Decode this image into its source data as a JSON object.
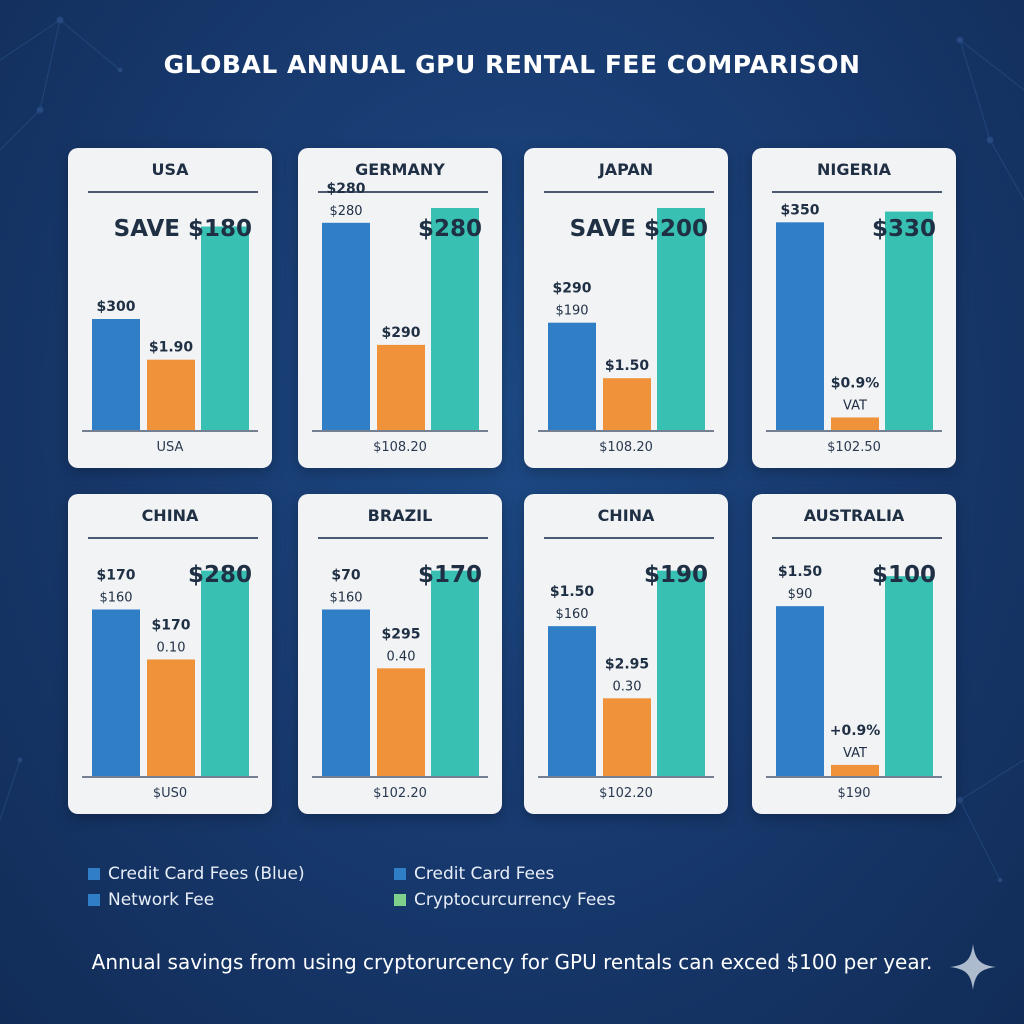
{
  "title": "GLOBAL ANNUAL GPU RENTAL FEE COMPARISON",
  "colors": {
    "credit": "#2f7ec6",
    "network": "#f0923a",
    "crypto": "#38c1b2",
    "crypto_legend": "#7fd08a"
  },
  "legend": [
    {
      "label": "Credit Card Fees (Blue)",
      "color": "#2f7ec6"
    },
    {
      "label": "Network Fee",
      "color": "#2f7ec6"
    },
    {
      "label": "Credit Card Fees",
      "color": "#2f7ec6"
    },
    {
      "label": "Cryptocurcurrency Fees",
      "color": "#7fd08a"
    }
  ],
  "footnote": "Annual savings from using cryptorurcency for GPU rentals can exced $100 per year.",
  "chart_data": [
    {
      "type": "bar",
      "title": "USA",
      "headline": "SAVE $180",
      "footer": "USA",
      "values": [
        300,
        190,
        550
      ],
      "labels": [
        [
          "$300"
        ],
        [
          "$1.90"
        ],
        []
      ],
      "ylim": [
        0,
        600
      ]
    },
    {
      "type": "bar",
      "title": "GERMANY",
      "headline": "$280",
      "footer": "$108.20",
      "values": [
        560,
        230,
        600
      ],
      "labels": [
        [
          "$280",
          "$280"
        ],
        [
          "$290"
        ],
        []
      ],
      "ylim": [
        0,
        600
      ]
    },
    {
      "type": "bar",
      "title": "JAPAN",
      "headline": "SAVE $200",
      "footer": "$108.20",
      "values": [
        290,
        140,
        600
      ],
      "labels": [
        [
          "$290",
          "$190"
        ],
        [
          "$1.50"
        ],
        []
      ],
      "ylim": [
        0,
        600
      ]
    },
    {
      "type": "bar",
      "title": "NIGERIA",
      "headline": "$330",
      "footer": "$102.50",
      "values": [
        580,
        35,
        610
      ],
      "labels": [
        [
          "$350"
        ],
        [
          "$0.9%",
          "VAT"
        ],
        []
      ],
      "ylim": [
        0,
        620
      ]
    },
    {
      "type": "bar",
      "title": "CHINA",
      "headline": "$280",
      "footer": "$US0",
      "values": [
        150,
        105,
        185
      ],
      "labels": [
        [
          "$170",
          "$160"
        ],
        [
          "$170",
          "0.10"
        ],
        []
      ],
      "ylim": [
        0,
        200
      ]
    },
    {
      "type": "bar",
      "title": "BRAZIL",
      "headline": "$170",
      "footer": "$102.20",
      "values": [
        150,
        97,
        185
      ],
      "labels": [
        [
          "$70",
          "$160"
        ],
        [
          "$295",
          "0.40"
        ],
        []
      ],
      "ylim": [
        0,
        200
      ]
    },
    {
      "type": "bar",
      "title": "CHINA",
      "headline": "$190",
      "footer": "$102.20",
      "values": [
        135,
        70,
        185
      ],
      "labels": [
        [
          "$1.50",
          "$160"
        ],
        [
          "$2.95",
          "0.30"
        ],
        []
      ],
      "ylim": [
        0,
        200
      ]
    },
    {
      "type": "bar",
      "title": "AUSTRALIA",
      "headline": "$100",
      "footer": "$190",
      "values": [
        153,
        10,
        180
      ],
      "labels": [
        [
          "$1.50",
          "$90"
        ],
        [
          "+0.9%",
          "VAT"
        ],
        []
      ],
      "ylim": [
        0,
        200
      ]
    }
  ]
}
